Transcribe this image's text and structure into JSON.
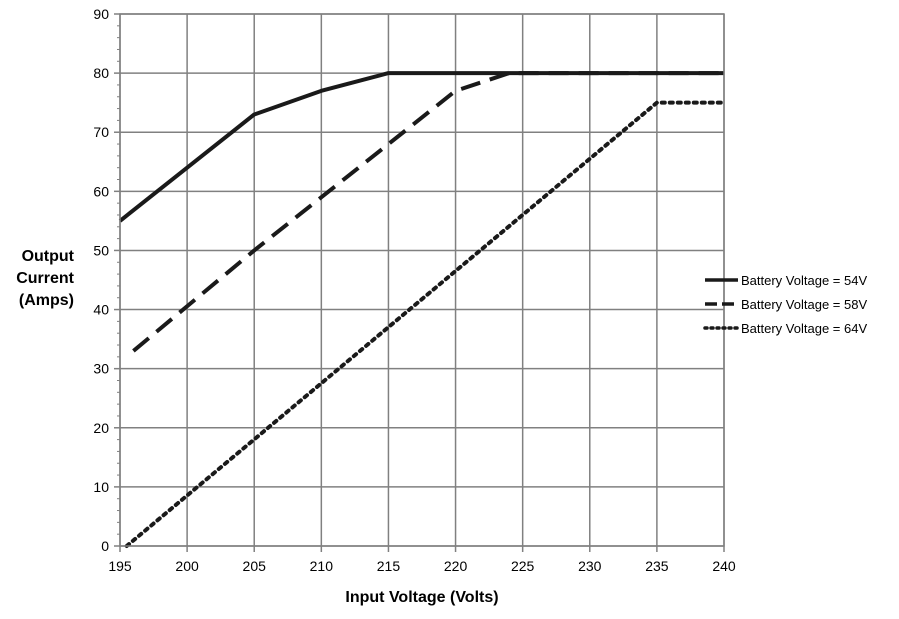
{
  "chart_data": {
    "type": "line",
    "title": "",
    "xlabel": "Input Voltage (Volts)",
    "ylabel_lines": [
      "Output",
      "Current",
      "(Amps)"
    ],
    "xlim": [
      195,
      240
    ],
    "ylim": [
      0,
      90
    ],
    "xticks": [
      195,
      200,
      205,
      210,
      215,
      220,
      225,
      230,
      235,
      240
    ],
    "yticks": [
      0,
      10,
      20,
      30,
      40,
      50,
      60,
      70,
      80,
      90
    ],
    "grid": true,
    "legend_position": "right",
    "series": [
      {
        "name": "Battery Voltage = 54V",
        "style": "solid",
        "color": "#1a1a1a",
        "x": [
          195,
          200,
          205,
          210,
          215,
          240
        ],
        "y": [
          55,
          64,
          73,
          77,
          80,
          80
        ]
      },
      {
        "name": "Battery Voltage = 58V",
        "style": "dashed",
        "color": "#1a1a1a",
        "x": [
          196,
          205,
          215,
          220,
          224,
          240
        ],
        "y": [
          33,
          50,
          68,
          77,
          80,
          80
        ]
      },
      {
        "name": "Battery Voltage = 64V",
        "style": "dotted",
        "color": "#1a1a1a",
        "x": [
          195.5,
          235,
          240
        ],
        "y": [
          0,
          75,
          75
        ]
      }
    ]
  }
}
